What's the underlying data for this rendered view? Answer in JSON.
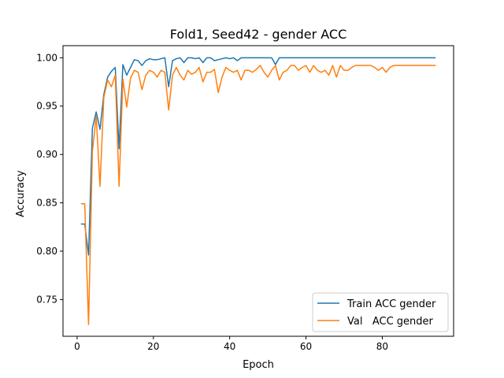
{
  "chart_data": {
    "type": "line",
    "title": "Fold1, Seed42 - gender ACC",
    "xlabel": "Epoch",
    "ylabel": "Accuracy",
    "xlim": [
      -3.7,
      98.7
    ],
    "ylim": [
      0.712,
      1.0125
    ],
    "xticks": [
      0,
      20,
      40,
      60,
      80
    ],
    "yticks": [
      0.75,
      0.8,
      0.85,
      0.9,
      0.95,
      1.0
    ],
    "ytick_labels": [
      "0.75",
      "0.80",
      "0.85",
      "0.90",
      "0.95",
      "1.00"
    ],
    "grid": false,
    "legend_position": "lower-right",
    "series": [
      {
        "name": "Train ACC gender",
        "color": "#1f77b4",
        "x": [
          1,
          2,
          3,
          4,
          5,
          6,
          7,
          8,
          9,
          10,
          11,
          12,
          13,
          14,
          15,
          16,
          17,
          18,
          19,
          20,
          21,
          22,
          23,
          24,
          25,
          26,
          27,
          28,
          29,
          30,
          31,
          32,
          33,
          34,
          35,
          36,
          37,
          38,
          39,
          40,
          41,
          42,
          43,
          44,
          45,
          46,
          47,
          48,
          49,
          50,
          51,
          52,
          53,
          54,
          55,
          56,
          57,
          58,
          59,
          60,
          61,
          62,
          63,
          64,
          65,
          66,
          67,
          68,
          69,
          70,
          71,
          72,
          73,
          74,
          75,
          76,
          77,
          78,
          79,
          80,
          81,
          82,
          83,
          84,
          85,
          86,
          87,
          88,
          89,
          90,
          91,
          92,
          93,
          94
        ],
        "y": [
          0.828,
          0.828,
          0.796,
          0.927,
          0.944,
          0.926,
          0.962,
          0.98,
          0.986,
          0.99,
          0.906,
          0.993,
          0.982,
          0.99,
          0.998,
          0.997,
          0.992,
          0.997,
          0.999,
          0.998,
          0.998,
          0.999,
          1.0,
          0.97,
          0.997,
          0.999,
          1.0,
          0.995,
          1.0,
          1.0,
          0.999,
          1.0,
          0.995,
          1.0,
          1.0,
          0.997,
          0.998,
          0.999,
          1.0,
          0.999,
          1.0,
          0.997,
          1.0,
          1.0,
          1.0,
          1.0,
          1.0,
          1.0,
          1.0,
          1.0,
          1.0,
          0.993,
          1.0,
          1.0,
          1.0,
          1.0,
          1.0,
          1.0,
          1.0,
          1.0,
          1.0,
          1.0,
          1.0,
          1.0,
          1.0,
          1.0,
          1.0,
          1.0,
          1.0,
          1.0,
          1.0,
          1.0,
          1.0,
          1.0,
          1.0,
          1.0,
          1.0,
          1.0,
          1.0,
          1.0,
          1.0,
          1.0,
          1.0,
          1.0,
          1.0,
          1.0,
          1.0,
          1.0,
          1.0,
          1.0,
          1.0,
          1.0,
          1.0,
          1.0
        ]
      },
      {
        "name": "Val   ACC gender",
        "color": "#ff7f0e",
        "x": [
          1,
          2,
          3,
          4,
          5,
          6,
          7,
          8,
          9,
          10,
          11,
          12,
          13,
          14,
          15,
          16,
          17,
          18,
          19,
          20,
          21,
          22,
          23,
          24,
          25,
          26,
          27,
          28,
          29,
          30,
          31,
          32,
          33,
          34,
          35,
          36,
          37,
          38,
          39,
          40,
          41,
          42,
          43,
          44,
          45,
          46,
          47,
          48,
          49,
          50,
          51,
          52,
          53,
          54,
          55,
          56,
          57,
          58,
          59,
          60,
          61,
          62,
          63,
          64,
          65,
          66,
          67,
          68,
          69,
          70,
          71,
          72,
          73,
          74,
          75,
          76,
          77,
          78,
          79,
          80,
          81,
          82,
          83,
          84,
          85,
          86,
          87,
          88,
          89,
          90,
          91,
          92,
          93,
          94
        ],
        "y": [
          0.849,
          0.849,
          0.724,
          0.903,
          0.94,
          0.867,
          0.959,
          0.977,
          0.97,
          0.982,
          0.867,
          0.978,
          0.949,
          0.979,
          0.987,
          0.985,
          0.967,
          0.982,
          0.987,
          0.985,
          0.98,
          0.987,
          0.985,
          0.946,
          0.982,
          0.99,
          0.982,
          0.977,
          0.987,
          0.983,
          0.985,
          0.99,
          0.975,
          0.985,
          0.985,
          0.988,
          0.964,
          0.98,
          0.99,
          0.987,
          0.985,
          0.987,
          0.977,
          0.987,
          0.987,
          0.985,
          0.988,
          0.992,
          0.985,
          0.98,
          0.987,
          0.992,
          0.977,
          0.985,
          0.987,
          0.992,
          0.992,
          0.987,
          0.99,
          0.992,
          0.985,
          0.992,
          0.987,
          0.985,
          0.987,
          0.982,
          0.992,
          0.98,
          0.992,
          0.987,
          0.987,
          0.99,
          0.992,
          0.992,
          0.992,
          0.992,
          0.992,
          0.99,
          0.987,
          0.99,
          0.985,
          0.99,
          0.992,
          0.992,
          0.992,
          0.992,
          0.992,
          0.992,
          0.992,
          0.992,
          0.992,
          0.992,
          0.992,
          0.992
        ]
      }
    ]
  }
}
